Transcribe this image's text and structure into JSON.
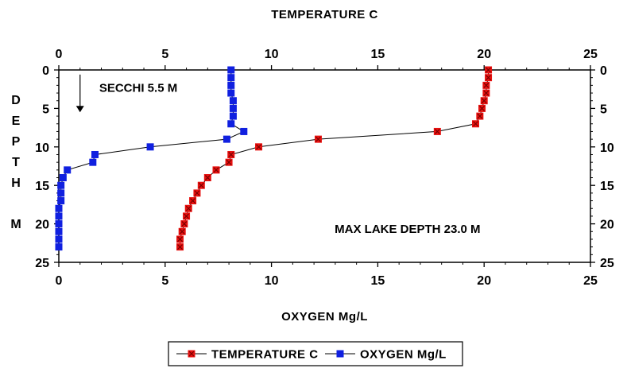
{
  "chart_data": {
    "type": "scatter",
    "x_top_label": "TEMPERATURE C",
    "x_bottom_label": "OXYGEN Mg/L",
    "y_label_letters": [
      "D",
      "E",
      "P",
      "T",
      "H",
      "",
      "M"
    ],
    "xlim": [
      0,
      25
    ],
    "ylim": [
      0,
      25
    ],
    "y_inverted": true,
    "x_ticks": [
      0,
      5,
      10,
      15,
      20,
      25
    ],
    "y_ticks": [
      0,
      5,
      10,
      15,
      20,
      25
    ],
    "secchi": {
      "label": "SECCHI 5.5 M",
      "x": 1,
      "depth": 5.5
    },
    "annotation": "MAX LAKE DEPTH 23.0 M",
    "legend_position": "bottom",
    "series": [
      {
        "name": "TEMPERATURE C",
        "axis": "top",
        "color": "#e8110f",
        "marker": "x-square",
        "points": [
          [
            20.2,
            0
          ],
          [
            20.2,
            1
          ],
          [
            20.1,
            2
          ],
          [
            20.1,
            3
          ],
          [
            20.0,
            4
          ],
          [
            19.9,
            5
          ],
          [
            19.8,
            6
          ],
          [
            19.6,
            7
          ],
          [
            17.8,
            8
          ],
          [
            12.2,
            9
          ],
          [
            9.4,
            10
          ],
          [
            8.1,
            11
          ],
          [
            8.0,
            12
          ],
          [
            7.4,
            13
          ],
          [
            7.0,
            14
          ],
          [
            6.7,
            15
          ],
          [
            6.5,
            16
          ],
          [
            6.3,
            17
          ],
          [
            6.1,
            18
          ],
          [
            6.0,
            19
          ],
          [
            5.9,
            20
          ],
          [
            5.8,
            21
          ],
          [
            5.7,
            22
          ],
          [
            5.7,
            23
          ]
        ]
      },
      {
        "name": "OXYGEN Mg/L",
        "axis": "bottom",
        "color": "#1020e0",
        "marker": "square",
        "points": [
          [
            8.1,
            0
          ],
          [
            8.1,
            1
          ],
          [
            8.1,
            2
          ],
          [
            8.1,
            3
          ],
          [
            8.2,
            4
          ],
          [
            8.2,
            5
          ],
          [
            8.2,
            6
          ],
          [
            8.1,
            7
          ],
          [
            8.7,
            8
          ],
          [
            7.9,
            9
          ],
          [
            4.3,
            10
          ],
          [
            1.7,
            11
          ],
          [
            1.6,
            12
          ],
          [
            0.4,
            13
          ],
          [
            0.2,
            14
          ],
          [
            0.1,
            15
          ],
          [
            0.1,
            16
          ],
          [
            0.1,
            17
          ],
          [
            0.0,
            18
          ],
          [
            0.0,
            19
          ],
          [
            0.0,
            20
          ],
          [
            0.0,
            21
          ],
          [
            0.0,
            22
          ],
          [
            0.0,
            23
          ]
        ]
      }
    ]
  }
}
